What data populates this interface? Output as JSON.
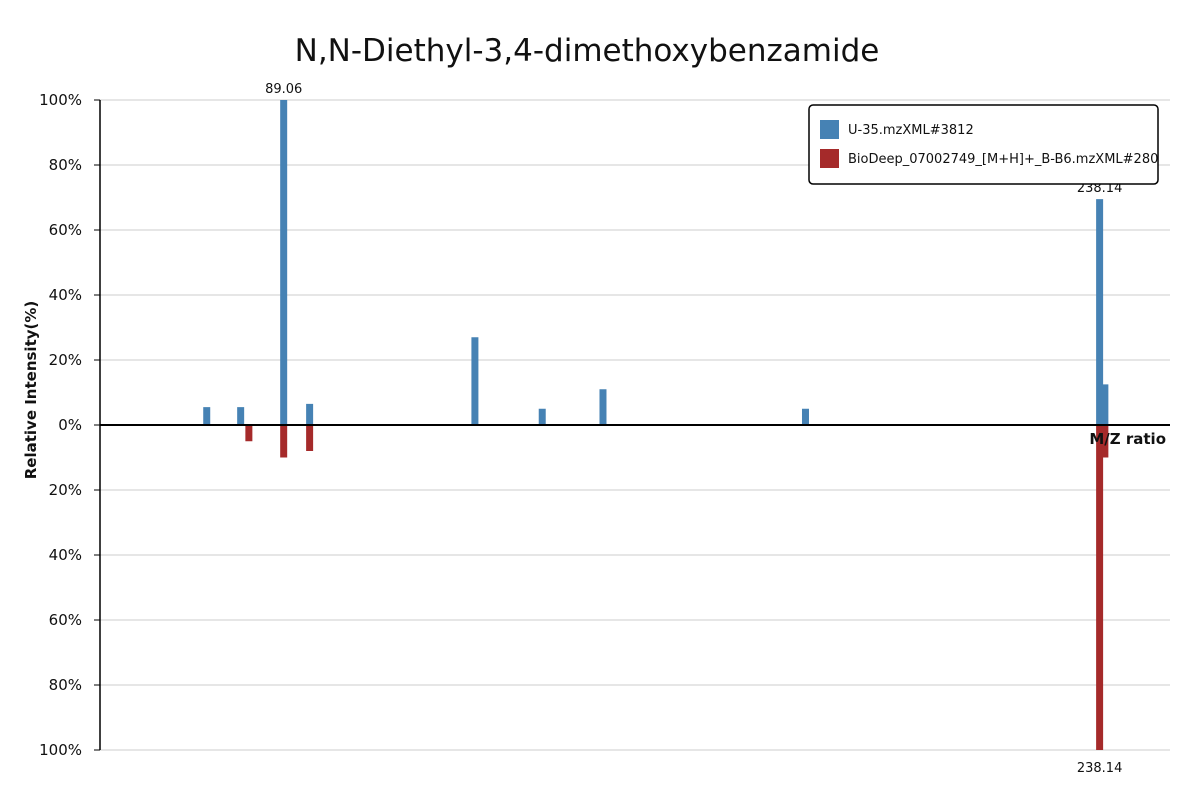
{
  "chart_data": {
    "type": "bar",
    "title": "N,N-Diethyl-3,4-dimethoxybenzamide",
    "ylabel": "Relative Intensity(%)",
    "xlabel": "M/Z ratio",
    "ylim": [
      -100,
      100
    ],
    "xlim": [
      55.5,
      251
    ],
    "grid": true,
    "legend_position": "top-right",
    "y_ticks": [
      "100%",
      "80%",
      "60%",
      "40%",
      "20%",
      "0%",
      "20%",
      "40%",
      "60%",
      "80%",
      "100%"
    ],
    "series": [
      {
        "name": "U-35.mzXML#3812",
        "color": "#4682b4",
        "direction": "up",
        "points": [
          {
            "x": 75.0,
            "y": 5.5
          },
          {
            "x": 81.2,
            "y": 5.5
          },
          {
            "x": 89.06,
            "y": 100,
            "label": "89.06"
          },
          {
            "x": 93.8,
            "y": 6.5
          },
          {
            "x": 124.0,
            "y": 27
          },
          {
            "x": 136.3,
            "y": 5
          },
          {
            "x": 147.4,
            "y": 11
          },
          {
            "x": 184.4,
            "y": 5
          },
          {
            "x": 238.14,
            "y": 69.5,
            "label": "238.14"
          },
          {
            "x": 239.1,
            "y": 12.5
          }
        ]
      },
      {
        "name": "BioDeep_07002749_[M+H]+_B-B6.mzXML#280",
        "color": "#a52a2a",
        "direction": "down",
        "points": [
          {
            "x": 82.7,
            "y": 5
          },
          {
            "x": 89.06,
            "y": 10
          },
          {
            "x": 93.8,
            "y": 8
          },
          {
            "x": 238.14,
            "y": 100,
            "label": "238.14"
          },
          {
            "x": 239.1,
            "y": 10
          }
        ]
      }
    ]
  }
}
